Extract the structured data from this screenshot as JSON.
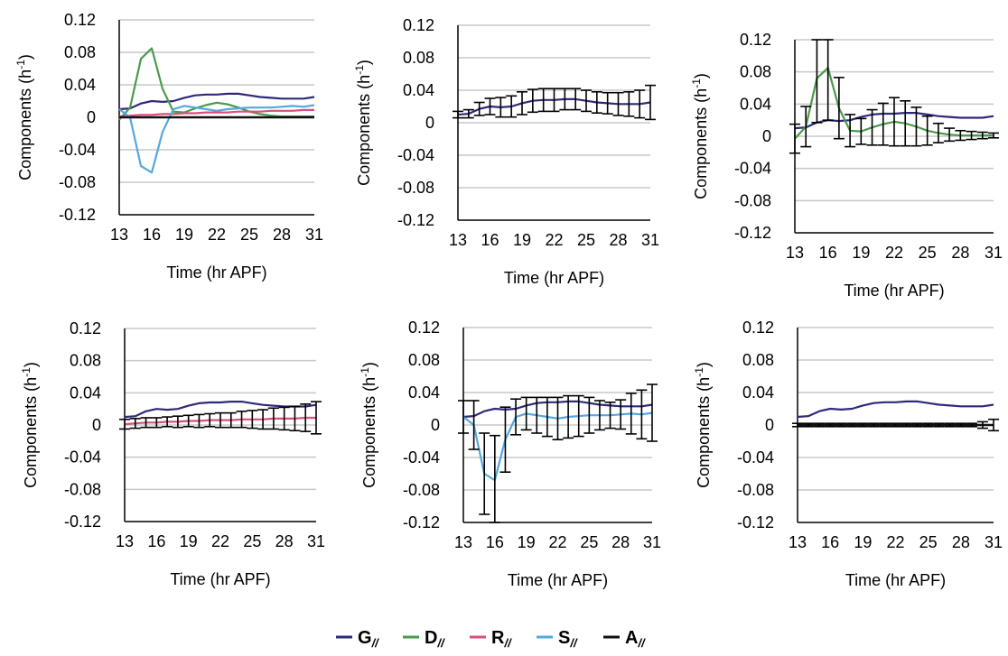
{
  "legend": {
    "items": [
      {
        "key": "G",
        "main": "G",
        "sub": "//",
        "color": "#2e2a7a"
      },
      {
        "key": "D",
        "main": "D",
        "sub": "//",
        "color": "#4c9a4c"
      },
      {
        "key": "R",
        "main": "R",
        "sub": "//",
        "color": "#d94f7b"
      },
      {
        "key": "S",
        "main": "S",
        "sub": "//",
        "color": "#55a8dd"
      },
      {
        "key": "A",
        "main": "A",
        "sub": "//",
        "color": "#111111"
      }
    ]
  },
  "axis_text": {
    "xlabel": "Time (hr APF)",
    "ylabel_main": "Components (h",
    "ylabel_sup": "-1",
    "ylabel_close": ")"
  },
  "chart_data": [
    {
      "type": "line",
      "panel": "1",
      "x": [
        13,
        14,
        15,
        16,
        17,
        18,
        19,
        20,
        21,
        22,
        23,
        24,
        25,
        26,
        27,
        28,
        29,
        30,
        31
      ],
      "x_ticks": [
        13,
        16,
        19,
        22,
        25,
        28,
        31
      ],
      "y_ticks": [
        0.12,
        0.08,
        0.04,
        0,
        -0.04,
        -0.08,
        -0.12
      ],
      "y_tick_labels": [
        "0.12",
        "0.08",
        "0.04",
        "0",
        "-0.04",
        "-0.08",
        "-0.12"
      ],
      "xlim": [
        13,
        31
      ],
      "ylim": [
        -0.12,
        0.12
      ],
      "grid": true,
      "error_bars": [],
      "series": [
        {
          "key": "G",
          "values": [
            0.01,
            0.011,
            0.017,
            0.02,
            0.019,
            0.02,
            0.024,
            0.027,
            0.028,
            0.028,
            0.029,
            0.029,
            0.027,
            0.025,
            0.024,
            0.023,
            0.023,
            0.023,
            0.025
          ]
        },
        {
          "key": "D",
          "values": [
            -0.003,
            0.012,
            0.072,
            0.085,
            0.035,
            0.007,
            0.006,
            0.011,
            0.015,
            0.018,
            0.016,
            0.012,
            0.007,
            0.004,
            0.002,
            0.001,
            0.001,
            0.001,
            0.001
          ]
        },
        {
          "key": "R",
          "values": [
            0.001,
            0.002,
            0.003,
            0.003,
            0.004,
            0.004,
            0.005,
            0.005,
            0.006,
            0.006,
            0.006,
            0.007,
            0.007,
            0.007,
            0.008,
            0.008,
            0.008,
            0.009,
            0.009
          ]
        },
        {
          "key": "S",
          "values": [
            0.01,
            0.0,
            -0.06,
            -0.068,
            -0.018,
            0.01,
            0.014,
            0.012,
            0.01,
            0.008,
            0.01,
            0.011,
            0.012,
            0.012,
            0.012,
            0.013,
            0.014,
            0.013,
            0.015
          ]
        },
        {
          "key": "A",
          "values": [
            0,
            0,
            0,
            0,
            0,
            0,
            0,
            0,
            0,
            0,
            0,
            0,
            0,
            0,
            0,
            0,
            0,
            0,
            0
          ]
        }
      ]
    },
    {
      "type": "line",
      "panel": "2",
      "x": [
        13,
        14,
        15,
        16,
        17,
        18,
        19,
        20,
        21,
        22,
        23,
        24,
        25,
        26,
        27,
        28,
        29,
        30,
        31
      ],
      "x_ticks": [
        13,
        16,
        19,
        22,
        25,
        28,
        31
      ],
      "y_ticks": [
        0.12,
        0.08,
        0.04,
        0,
        -0.04,
        -0.08,
        -0.12
      ],
      "y_tick_labels": [
        "0.12",
        "0.08",
        "0.04",
        "0",
        "-0.04",
        "-0.08",
        "-0.12"
      ],
      "xlim": [
        13,
        31
      ],
      "ylim": [
        -0.12,
        0.12
      ],
      "grid": true,
      "error_bars": [
        {
          "key": "G",
          "err": [
            0.004,
            0.005,
            0.008,
            0.01,
            0.012,
            0.013,
            0.014,
            0.014,
            0.014,
            0.014,
            0.013,
            0.013,
            0.013,
            0.013,
            0.013,
            0.014,
            0.015,
            0.017,
            0.021
          ]
        }
      ],
      "series": [
        {
          "key": "G",
          "values": [
            0.01,
            0.011,
            0.017,
            0.02,
            0.019,
            0.02,
            0.024,
            0.027,
            0.028,
            0.028,
            0.029,
            0.029,
            0.027,
            0.025,
            0.024,
            0.023,
            0.023,
            0.023,
            0.025
          ]
        }
      ]
    },
    {
      "type": "line",
      "panel": "3",
      "x": [
        13,
        14,
        15,
        16,
        17,
        18,
        19,
        20,
        21,
        22,
        23,
        24,
        25,
        26,
        27,
        28,
        29,
        30,
        31
      ],
      "x_ticks": [
        13,
        16,
        19,
        22,
        25,
        28,
        31
      ],
      "y_ticks": [
        0.12,
        0.08,
        0.04,
        0,
        -0.04,
        -0.08,
        -0.12
      ],
      "y_tick_labels": [
        "0.12",
        "0.08",
        "0.04",
        "0",
        "-0.04",
        "-0.08",
        "-0.12"
      ],
      "xlim": [
        13,
        31
      ],
      "ylim": [
        -0.12,
        0.12
      ],
      "grid": true,
      "error_bars": [
        {
          "key": "D",
          "err": [
            0.018,
            0.025,
            0.055,
            0.065,
            0.038,
            0.02,
            0.016,
            0.022,
            0.026,
            0.03,
            0.028,
            0.024,
            0.018,
            0.012,
            0.008,
            0.006,
            0.005,
            0.004,
            0.003
          ]
        }
      ],
      "series": [
        {
          "key": "G",
          "values": [
            0.01,
            0.011,
            0.017,
            0.02,
            0.019,
            0.02,
            0.024,
            0.027,
            0.028,
            0.028,
            0.029,
            0.029,
            0.027,
            0.025,
            0.024,
            0.023,
            0.023,
            0.023,
            0.025
          ]
        },
        {
          "key": "D",
          "values": [
            -0.003,
            0.012,
            0.072,
            0.085,
            0.035,
            0.007,
            0.006,
            0.011,
            0.015,
            0.018,
            0.016,
            0.012,
            0.007,
            0.004,
            0.002,
            0.001,
            0.001,
            0.001,
            0.001
          ]
        }
      ]
    },
    {
      "type": "line",
      "panel": "4",
      "x": [
        13,
        14,
        15,
        16,
        17,
        18,
        19,
        20,
        21,
        22,
        23,
        24,
        25,
        26,
        27,
        28,
        29,
        30,
        31
      ],
      "x_ticks": [
        13,
        16,
        19,
        22,
        25,
        28,
        31
      ],
      "y_ticks": [
        0.12,
        0.08,
        0.04,
        0,
        -0.04,
        -0.08,
        -0.12
      ],
      "y_tick_labels": [
        "0.12",
        "0.08",
        "0.04",
        "0",
        "-0.04",
        "-0.08",
        "-0.12"
      ],
      "xlim": [
        13,
        31
      ],
      "ylim": [
        -0.12,
        0.12
      ],
      "grid": true,
      "error_bars": [
        {
          "key": "R",
          "err": [
            0.006,
            0.006,
            0.006,
            0.006,
            0.006,
            0.007,
            0.007,
            0.008,
            0.008,
            0.009,
            0.009,
            0.01,
            0.011,
            0.012,
            0.013,
            0.014,
            0.015,
            0.017,
            0.02
          ]
        }
      ],
      "series": [
        {
          "key": "G",
          "values": [
            0.01,
            0.011,
            0.017,
            0.02,
            0.019,
            0.02,
            0.024,
            0.027,
            0.028,
            0.028,
            0.029,
            0.029,
            0.027,
            0.025,
            0.024,
            0.023,
            0.023,
            0.023,
            0.025
          ]
        },
        {
          "key": "R",
          "values": [
            0.001,
            0.002,
            0.003,
            0.003,
            0.004,
            0.004,
            0.005,
            0.005,
            0.006,
            0.006,
            0.006,
            0.007,
            0.007,
            0.007,
            0.008,
            0.008,
            0.008,
            0.009,
            0.009
          ]
        }
      ]
    },
    {
      "type": "line",
      "panel": "5",
      "x": [
        13,
        14,
        15,
        16,
        17,
        18,
        19,
        20,
        21,
        22,
        23,
        24,
        25,
        26,
        27,
        28,
        29,
        30,
        31
      ],
      "x_ticks": [
        13,
        16,
        19,
        22,
        25,
        28,
        31
      ],
      "y_ticks": [
        0.12,
        0.08,
        0.04,
        0,
        -0.04,
        -0.08,
        -0.12
      ],
      "y_tick_labels": [
        "0.12",
        "0.08",
        "0.04",
        "0",
        "-0.04",
        "-0.08",
        "-0.12"
      ],
      "xlim": [
        13,
        31
      ],
      "ylim": [
        -0.12,
        0.12
      ],
      "grid": true,
      "error_bars": [
        {
          "key": "S",
          "err": [
            0.02,
            0.03,
            0.05,
            0.055,
            0.04,
            0.022,
            0.02,
            0.022,
            0.024,
            0.026,
            0.026,
            0.025,
            0.022,
            0.018,
            0.016,
            0.018,
            0.025,
            0.03,
            0.035
          ]
        }
      ],
      "series": [
        {
          "key": "G",
          "values": [
            0.01,
            0.011,
            0.017,
            0.02,
            0.019,
            0.02,
            0.024,
            0.027,
            0.028,
            0.028,
            0.029,
            0.029,
            0.027,
            0.025,
            0.024,
            0.023,
            0.023,
            0.023,
            0.025
          ]
        },
        {
          "key": "S",
          "values": [
            0.01,
            0.0,
            -0.06,
            -0.068,
            -0.018,
            0.01,
            0.014,
            0.012,
            0.01,
            0.008,
            0.01,
            0.011,
            0.012,
            0.012,
            0.012,
            0.013,
            0.014,
            0.013,
            0.015
          ]
        }
      ]
    },
    {
      "type": "line",
      "panel": "6",
      "x": [
        13,
        14,
        15,
        16,
        17,
        18,
        19,
        20,
        21,
        22,
        23,
        24,
        25,
        26,
        27,
        28,
        29,
        30,
        31
      ],
      "x_ticks": [
        13,
        16,
        19,
        22,
        25,
        28,
        31
      ],
      "y_ticks": [
        0.12,
        0.08,
        0.04,
        0,
        -0.04,
        -0.08,
        -0.12
      ],
      "y_tick_labels": [
        "0.12",
        "0.08",
        "0.04",
        "0",
        "-0.04",
        "-0.08",
        "-0.12"
      ],
      "xlim": [
        13,
        31
      ],
      "ylim": [
        -0.12,
        0.12
      ],
      "grid": true,
      "error_bars": [
        {
          "key": "A",
          "err": [
            0.002,
            0.002,
            0.002,
            0.002,
            0.002,
            0.002,
            0.002,
            0.002,
            0.002,
            0.002,
            0.002,
            0.002,
            0.002,
            0.002,
            0.002,
            0.002,
            0.002,
            0.004,
            0.007
          ]
        }
      ],
      "series": [
        {
          "key": "G",
          "values": [
            0.01,
            0.011,
            0.017,
            0.02,
            0.019,
            0.02,
            0.024,
            0.027,
            0.028,
            0.028,
            0.029,
            0.029,
            0.027,
            0.025,
            0.024,
            0.023,
            0.023,
            0.023,
            0.025
          ]
        },
        {
          "key": "A",
          "values": [
            0,
            0,
            0,
            0,
            0,
            0,
            0,
            0,
            0,
            0,
            0,
            0,
            0,
            0,
            0,
            0,
            0,
            0,
            0
          ]
        }
      ]
    }
  ]
}
